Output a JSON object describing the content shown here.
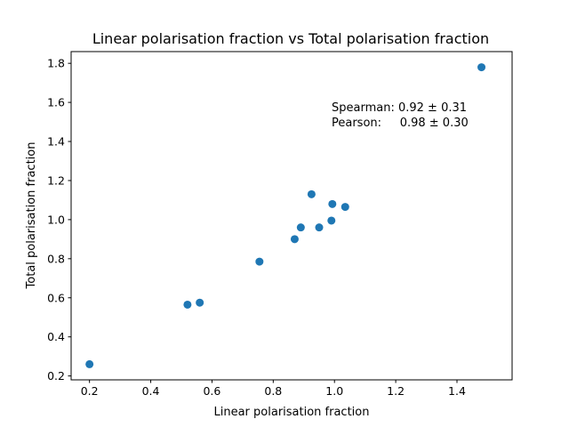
{
  "chart_data": {
    "type": "scatter",
    "title": "Linear polarisation fraction vs Total polarisation fraction",
    "xlabel": "Linear polarisation fraction",
    "ylabel": "Total polarisation fraction",
    "xlim": [
      0.14,
      1.58
    ],
    "ylim": [
      0.18,
      1.86
    ],
    "xticks": [
      0.2,
      0.4,
      0.6,
      0.8,
      1.0,
      1.2,
      1.4
    ],
    "xtick_labels": [
      "0.2",
      "0.4",
      "0.6",
      "0.8",
      "1.0",
      "1.2",
      "1.4"
    ],
    "yticks": [
      0.2,
      0.4,
      0.6,
      0.8,
      1.0,
      1.2,
      1.4,
      1.6,
      1.8
    ],
    "ytick_labels": [
      "0.2",
      "0.4",
      "0.6",
      "0.8",
      "1.0",
      "1.2",
      "1.4",
      "1.6",
      "1.8"
    ],
    "grid": false,
    "marker_color": "#1f77b4",
    "points": [
      {
        "x": 0.2,
        "y": 0.26
      },
      {
        "x": 0.52,
        "y": 0.565
      },
      {
        "x": 0.56,
        "y": 0.575
      },
      {
        "x": 0.755,
        "y": 0.785
      },
      {
        "x": 0.87,
        "y": 0.9
      },
      {
        "x": 0.89,
        "y": 0.96
      },
      {
        "x": 0.925,
        "y": 1.13
      },
      {
        "x": 0.95,
        "y": 0.96
      },
      {
        "x": 0.99,
        "y": 0.995
      },
      {
        "x": 0.993,
        "y": 1.08
      },
      {
        "x": 1.035,
        "y": 1.065
      },
      {
        "x": 1.48,
        "y": 1.78
      }
    ],
    "annotations": [
      "Spearman: 0.92 ± 0.31",
      "Pearson:     0.98 ± 0.30"
    ]
  }
}
